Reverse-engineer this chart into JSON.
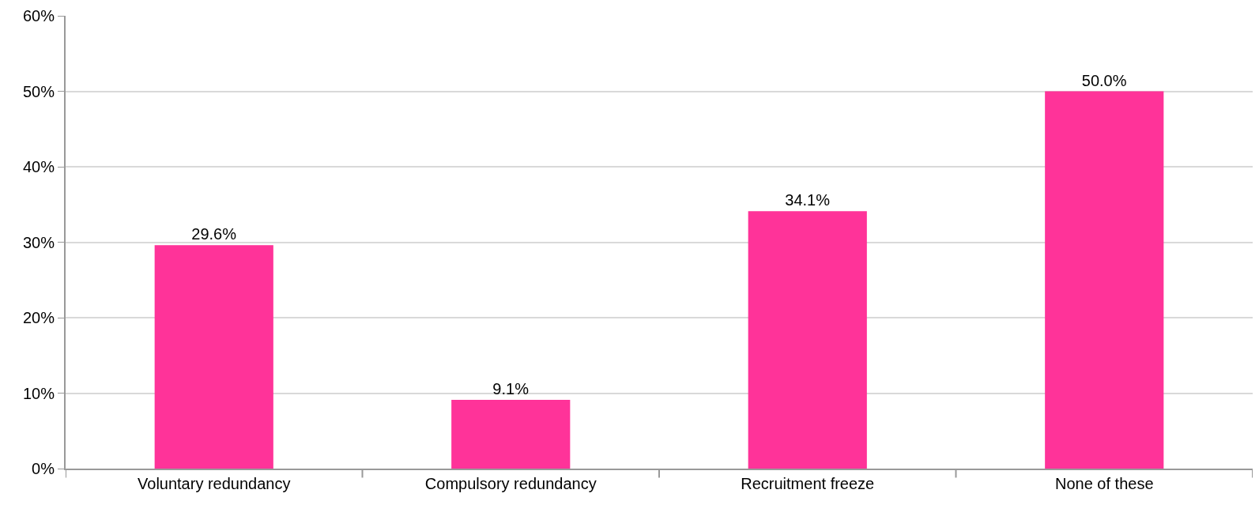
{
  "chart_data": {
    "type": "bar",
    "categories": [
      "Voluntary redundancy",
      "Compulsory redundancy",
      "Recruitment freeze",
      "None of these"
    ],
    "values": [
      29.6,
      9.1,
      34.1,
      50.0
    ],
    "value_labels": [
      "29.6%",
      "9.1%",
      "34.1%",
      "50.0%"
    ],
    "color": "#ff3399",
    "ylim": [
      0,
      60
    ],
    "yticks": [
      {
        "value": 0,
        "label": "0%"
      },
      {
        "value": 10,
        "label": "10%"
      },
      {
        "value": 20,
        "label": "20%"
      },
      {
        "value": 30,
        "label": "30%"
      },
      {
        "value": 40,
        "label": "40%"
      },
      {
        "value": 50,
        "label": "50%"
      },
      {
        "value": 60,
        "label": "60%"
      }
    ],
    "grid": "y",
    "legend": false
  }
}
